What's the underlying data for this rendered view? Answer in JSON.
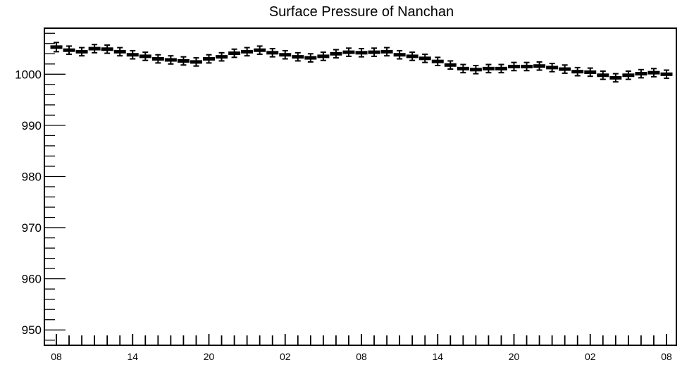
{
  "chart_data": {
    "type": "scatter",
    "title": "Surface Pressure of Nanchan",
    "xlabel": "",
    "ylabel": "",
    "ylim": [
      947,
      1009
    ],
    "yticks": [
      950,
      960,
      970,
      980,
      990,
      1000
    ],
    "xticks": [
      "08",
      "14",
      "20",
      "02",
      "08",
      "14",
      "20",
      "02",
      "08"
    ],
    "grid": false,
    "legend": "none",
    "marker_color": "#000000",
    "series": [
      {
        "values": [
          1005.3,
          1004.7,
          1004.4,
          1005.0,
          1004.9,
          1004.4,
          1003.8,
          1003.5,
          1003.0,
          1002.8,
          1002.6,
          1002.4,
          1003.0,
          1003.4,
          1004.1,
          1004.4,
          1004.7,
          1004.2,
          1003.8,
          1003.4,
          1003.2,
          1003.5,
          1004.0,
          1004.3,
          1004.2,
          1004.3,
          1004.4,
          1003.8,
          1003.5,
          1003.1,
          1002.5,
          1001.8,
          1001.1,
          1000.9,
          1001.1,
          1001.1,
          1001.5,
          1001.5,
          1001.6,
          1001.3,
          1001.0,
          1000.5,
          1000.4,
          999.8,
          999.3,
          999.8,
          1000.1,
          1000.3,
          1000.0
        ],
        "errors": [
          0.9,
          0.8,
          0.8,
          0.8,
          0.8,
          0.8,
          0.8,
          0.8,
          0.8,
          0.8,
          0.8,
          0.8,
          0.8,
          0.8,
          0.8,
          0.8,
          0.8,
          0.8,
          0.8,
          0.8,
          0.8,
          0.8,
          0.8,
          0.8,
          0.8,
          0.8,
          0.8,
          0.8,
          0.8,
          0.8,
          0.8,
          0.8,
          0.8,
          0.8,
          0.8,
          0.8,
          0.8,
          0.8,
          0.8,
          0.8,
          0.8,
          0.8,
          0.8,
          0.8,
          0.8,
          0.8,
          0.8,
          0.8,
          0.8
        ]
      }
    ]
  }
}
